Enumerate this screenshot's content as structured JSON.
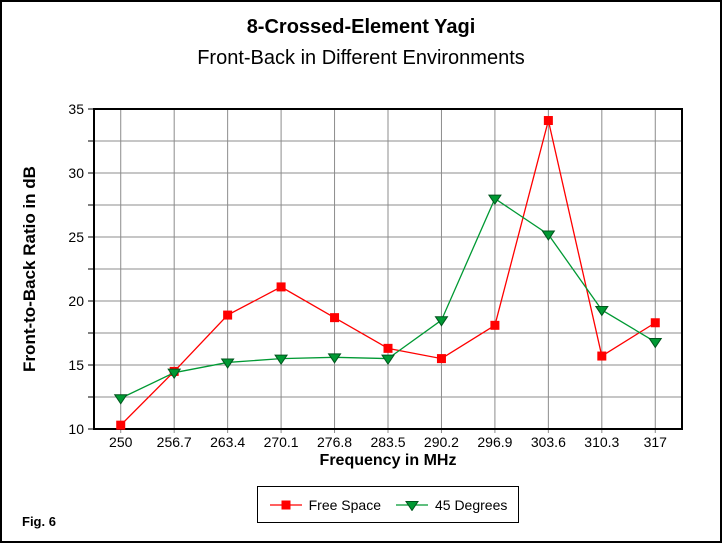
{
  "page": {
    "fig_label": "Fig. 6"
  },
  "header": {
    "title": "8-Crossed-Element Yagi",
    "subtitle": "Front-Back in Different Environments"
  },
  "chart_data": {
    "type": "line",
    "title": "8-Crossed-Element Yagi",
    "subtitle": "Front-Back in Different Environments",
    "xlabel": "Frequency in MHz",
    "ylabel": "Front-to-Back Ratio in dB",
    "categories": [
      "250",
      "256.7",
      "263.4",
      "270.1",
      "276.8",
      "283.5",
      "290.2",
      "296.9",
      "303.6",
      "310.3",
      "317"
    ],
    "ylim": [
      10,
      35
    ],
    "y_major_step": 5,
    "y_minor_step": 2.5,
    "y_tick_labels": [
      "10",
      "15",
      "20",
      "25",
      "30",
      "35"
    ],
    "grid": true,
    "grid_color": "#8c8c8c",
    "axis_color": "#000000",
    "legend_position": "bottom-center",
    "series": [
      {
        "name": "Free Space",
        "color": "#ff0000",
        "marker": "square",
        "values": [
          10.3,
          14.5,
          18.9,
          21.1,
          18.7,
          16.3,
          15.5,
          18.1,
          34.1,
          15.7,
          18.3
        ]
      },
      {
        "name": "45 Degrees",
        "color": "#009933",
        "marker": "triangle-down",
        "values": [
          12.4,
          14.4,
          15.2,
          15.5,
          15.6,
          15.5,
          18.5,
          28.0,
          25.2,
          19.3,
          16.8
        ]
      }
    ]
  }
}
